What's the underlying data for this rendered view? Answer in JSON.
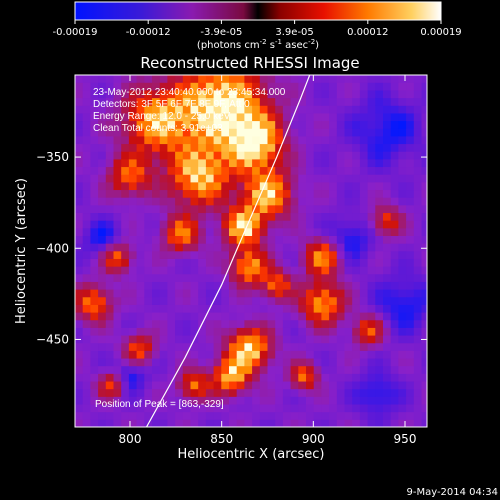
{
  "colorbar": {
    "ticks": [
      "-0.00019",
      "-0.00012",
      "-3.9e-05",
      "3.9e-05",
      "0.00012",
      "0.00019"
    ],
    "units_main": "(photons cm",
    "units_exp1": "-2",
    "units_mid": " s",
    "units_exp2": "-1",
    "units_tail": " asec",
    "units_exp3": "-2",
    "units_close": ")"
  },
  "chart_data": {
    "type": "heatmap",
    "title": "Reconstructed RHESSI Image",
    "xlabel": "Heliocentric X (arcsec)",
    "ylabel": "Heliocentric Y (arcsec)",
    "xlim": [
      770,
      962
    ],
    "ylim": [
      -498,
      -305
    ],
    "x_ticks": [
      800,
      850,
      900,
      950
    ],
    "y_ticks": [
      -350,
      -400,
      -450
    ],
    "x_tick_labels": [
      "800",
      "850",
      "900",
      "950"
    ],
    "y_tick_labels": [
      "−350",
      "−400",
      "−450"
    ],
    "zlim": [
      -0.00019,
      0.00019
    ],
    "colormap": [
      "#0018ff",
      "#5a18d8",
      "#8a20c8",
      "#a01a70",
      "#c80e0e",
      "#ff3a00",
      "#ff8c00",
      "#ffd060",
      "#ffffe0"
    ],
    "info_lines": [
      "23-May-2012 23:40:40.000 to 23:45:34.000",
      "Detectors: 3F 5F 6F 7F 8F 9F, Att 0",
      "Energy Range: 12.0 - 25.0 keV",
      "Clean     Total counts: 3.91e+03"
    ],
    "peak_label": "Position of Peak = [863,-329]",
    "limb_curve": [
      [
        809,
        -498
      ],
      [
        830,
        -460
      ],
      [
        850,
        -420
      ],
      [
        865,
        -385
      ],
      [
        880,
        -350
      ],
      [
        893,
        -318
      ],
      [
        898,
        -305
      ]
    ],
    "hot_spots": [
      {
        "x": 850,
        "y": -322,
        "r": 28,
        "v": 1.0
      },
      {
        "x": 815,
        "y": -330,
        "r": 22,
        "v": 0.75
      },
      {
        "x": 868,
        "y": -342,
        "r": 18,
        "v": 0.9
      },
      {
        "x": 838,
        "y": -360,
        "r": 20,
        "v": 0.8
      },
      {
        "x": 800,
        "y": -360,
        "r": 14,
        "v": 0.55
      },
      {
        "x": 875,
        "y": -370,
        "r": 16,
        "v": 0.8
      },
      {
        "x": 862,
        "y": -388,
        "r": 13,
        "v": 0.85
      },
      {
        "x": 828,
        "y": -392,
        "r": 12,
        "v": 0.6
      },
      {
        "x": 793,
        "y": -405,
        "r": 10,
        "v": 0.55
      },
      {
        "x": 865,
        "y": -410,
        "r": 12,
        "v": 0.7
      },
      {
        "x": 905,
        "y": -405,
        "r": 12,
        "v": 0.65
      },
      {
        "x": 905,
        "y": -430,
        "r": 14,
        "v": 0.7
      },
      {
        "x": 880,
        "y": -420,
        "r": 10,
        "v": 0.55
      },
      {
        "x": 940,
        "y": -385,
        "r": 10,
        "v": 0.45
      },
      {
        "x": 780,
        "y": -430,
        "r": 12,
        "v": 0.6
      },
      {
        "x": 805,
        "y": -455,
        "r": 10,
        "v": 0.5
      },
      {
        "x": 865,
        "y": -455,
        "r": 14,
        "v": 0.85
      },
      {
        "x": 855,
        "y": -470,
        "r": 12,
        "v": 0.75
      },
      {
        "x": 835,
        "y": -475,
        "r": 10,
        "v": 0.55
      },
      {
        "x": 895,
        "y": -470,
        "r": 9,
        "v": 0.55
      },
      {
        "x": 930,
        "y": -445,
        "r": 10,
        "v": 0.5
      },
      {
        "x": 790,
        "y": -475,
        "r": 9,
        "v": 0.45
      }
    ],
    "cold_spots": [
      {
        "x": 940,
        "y": -335,
        "r": 22
      },
      {
        "x": 920,
        "y": -395,
        "r": 14
      },
      {
        "x": 950,
        "y": -430,
        "r": 18
      },
      {
        "x": 785,
        "y": -395,
        "r": 12
      },
      {
        "x": 800,
        "y": -470,
        "r": 10
      },
      {
        "x": 935,
        "y": -480,
        "r": 14
      }
    ]
  },
  "footer": {
    "date": "9-May-2014 04:34"
  }
}
